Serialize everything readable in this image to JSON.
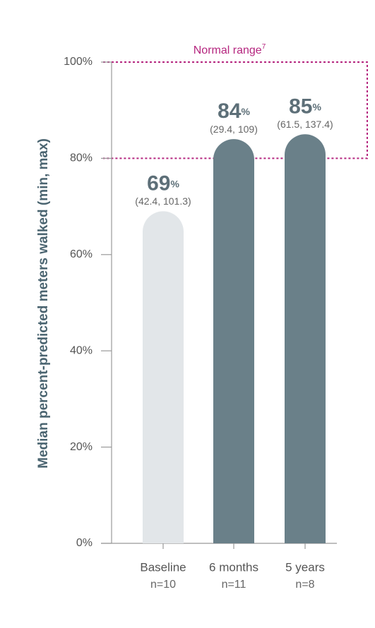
{
  "chart_data": {
    "type": "bar",
    "y_axis_label": "Median percent-predicted meters walked (min, max)",
    "categories": [
      "Baseline",
      "6 months",
      "5 years"
    ],
    "sample_sizes": [
      "n=10",
      "n=11",
      "n=8"
    ],
    "values": [
      69,
      84,
      85
    ],
    "value_unit": "%",
    "range_labels": [
      "(42.4, 101.3)",
      "(29.4, 109)",
      "(61.5, 137.4)"
    ],
    "colors": [
      "#e2e6e9",
      "#6a8089",
      "#6a8089"
    ],
    "ylim": [
      0,
      100
    ],
    "yticks": [
      {
        "value": 0,
        "label": "0%"
      },
      {
        "value": 20,
        "label": "20%"
      },
      {
        "value": 40,
        "label": "40%"
      },
      {
        "value": 60,
        "label": "60%"
      },
      {
        "value": 80,
        "label": "80%"
      },
      {
        "value": 100,
        "label": "100%"
      }
    ],
    "normal_range": [
      80,
      100
    ],
    "normal_range_label": "Normal range",
    "normal_range_footnote": "7",
    "normal_range_color": "#b5267f"
  }
}
